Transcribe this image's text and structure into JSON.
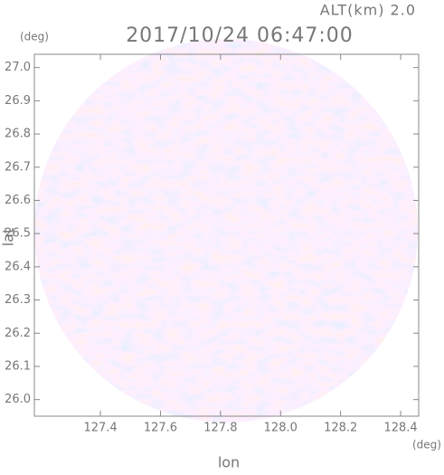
{
  "chart_data": {
    "type": "radar",
    "title": "2017/10/24 06:47:00",
    "subtitle": "ALT(km) 2.0",
    "x_label": "lon",
    "y_label": "lat",
    "x_unit": "(deg)",
    "y_unit": "(deg)",
    "xlim": [
      127.18,
      128.46
    ],
    "ylim": [
      25.95,
      27.04
    ],
    "xticks": [
      127.4,
      127.6,
      127.8,
      {
        "value": 128.0,
        "label": "128.0"
      },
      128.2,
      128.4
    ],
    "yticks": [
      {
        "value": 26.0,
        "label": "26.0"
      },
      26.1,
      26.2,
      26.3,
      26.4,
      26.5,
      26.6,
      26.7,
      26.8,
      26.9,
      {
        "value": 27.0,
        "label": "27.0"
      }
    ]
  }
}
